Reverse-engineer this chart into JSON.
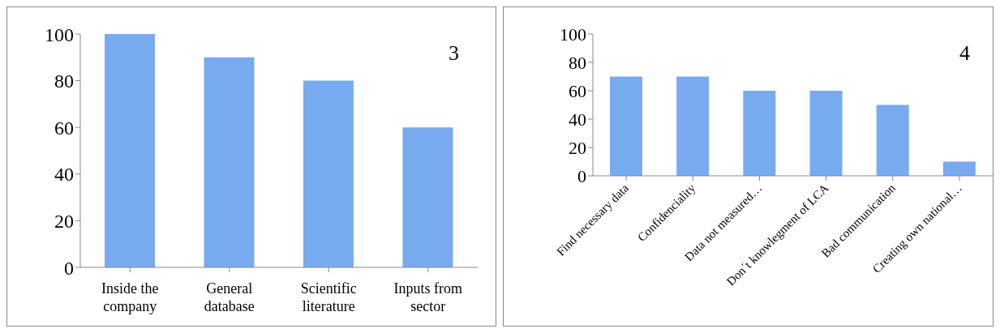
{
  "chart_data": [
    {
      "type": "bar",
      "title": "3",
      "categories": [
        "Inside the company",
        "General database",
        "Scientific literature",
        "Inputs from sector"
      ],
      "values": [
        100,
        90,
        80,
        60
      ],
      "color": "#78aaf0",
      "ylim": [
        0,
        100
      ],
      "yticks": [
        0,
        20,
        40,
        60,
        80,
        100
      ],
      "grid": false
    },
    {
      "type": "bar",
      "title": "4",
      "categories": [
        "Find necessary data",
        "Confidenciality",
        "Data not measured…",
        "Don´t knowlegment of LCA",
        "Bad communication",
        "Creating own national…"
      ],
      "values": [
        70,
        70,
        60,
        60,
        50,
        10
      ],
      "color": "#78aaf0",
      "ylim": [
        0,
        100
      ],
      "yticks": [
        0,
        20,
        40,
        60,
        80,
        100
      ],
      "grid": false
    }
  ]
}
